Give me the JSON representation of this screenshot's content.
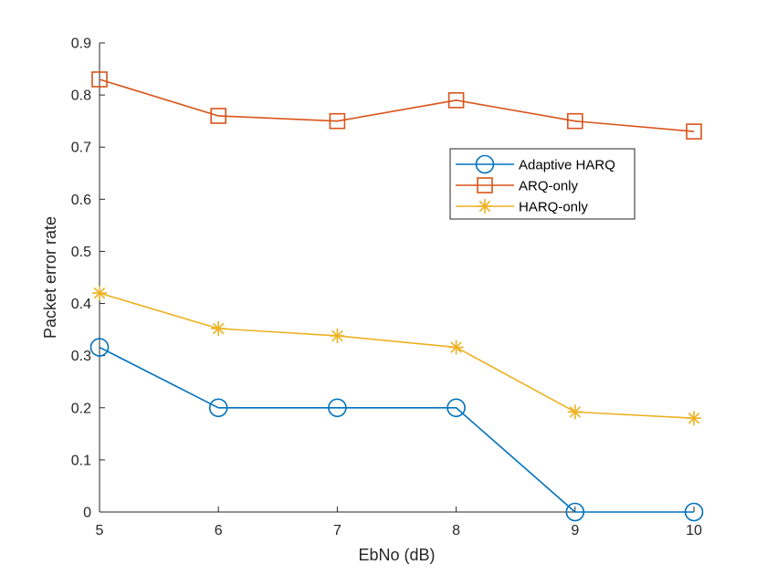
{
  "chart_data": {
    "type": "line",
    "title": "",
    "xlabel": "EbNo (dB)",
    "ylabel": "Packet error rate",
    "x": [
      5,
      6,
      7,
      8,
      9,
      10
    ],
    "xlim": [
      5,
      10
    ],
    "ylim": [
      0,
      0.9
    ],
    "xticks": [
      "5",
      "6",
      "7",
      "8",
      "9",
      "10"
    ],
    "yticks": [
      "0",
      "0.1",
      "0.2",
      "0.3",
      "0.4",
      "0.5",
      "0.6",
      "0.7",
      "0.8",
      "0.9"
    ],
    "grid": false,
    "legend_position": "upper-right-inside",
    "series": [
      {
        "name": "Adaptive HARQ",
        "color": "#0072BD",
        "marker": "circle",
        "values": [
          0.316,
          0.2,
          0.2,
          0.2,
          0.0,
          0.0
        ]
      },
      {
        "name": "ARQ-only",
        "color": "#D95319",
        "marker": "square",
        "values": [
          0.83,
          0.76,
          0.75,
          0.79,
          0.75,
          0.73
        ]
      },
      {
        "name": "HARQ-only",
        "color": "#EDB120",
        "marker": "star",
        "values": [
          0.42,
          0.352,
          0.338,
          0.316,
          0.192,
          0.18
        ]
      }
    ]
  }
}
